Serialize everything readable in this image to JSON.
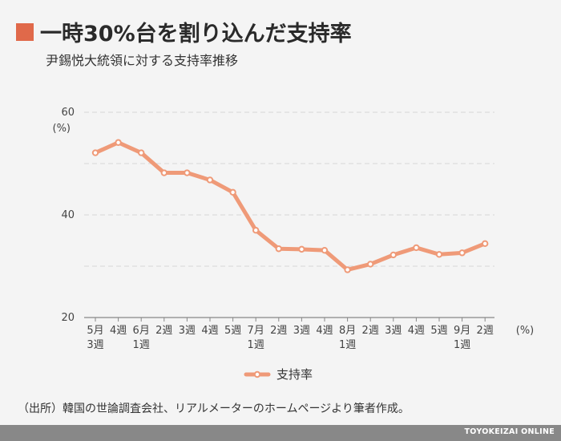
{
  "header": {
    "title": "一時30%台を割り込んだ支持率",
    "subtitle": "尹錫悦大統領に対する支持率推移"
  },
  "colors": {
    "accent": "#e0694a",
    "line": "#ef9a78",
    "grid": "#d6d6d6",
    "background": "#f4f4f4"
  },
  "chart_data": {
    "type": "line",
    "ylim": [
      20,
      60
    ],
    "yticks": [
      "20",
      "40",
      "60"
    ],
    "yunit": "(%)",
    "xunit": "(%)",
    "grid": true,
    "legend_position": "bottom",
    "categories": [
      [
        "5月",
        "3週"
      ],
      [
        "4週"
      ],
      [
        "6月",
        "1週"
      ],
      [
        "2週"
      ],
      [
        "3週"
      ],
      [
        "4週"
      ],
      [
        "5週"
      ],
      [
        "7月",
        "1週"
      ],
      [
        "2週"
      ],
      [
        "3週"
      ],
      [
        "4週"
      ],
      [
        "8月",
        "1週"
      ],
      [
        "2週"
      ],
      [
        "3週"
      ],
      [
        "4週"
      ],
      [
        "5週"
      ],
      [
        "9月",
        "1週"
      ],
      [
        "2週"
      ]
    ],
    "series": [
      {
        "name": "支持率",
        "values": [
          52.1,
          54.1,
          52.1,
          48.2,
          48.2,
          46.8,
          44.4,
          37.0,
          33.4,
          33.3,
          33.1,
          29.3,
          30.4,
          32.2,
          33.6,
          32.3,
          32.6,
          34.4
        ]
      }
    ]
  },
  "footer": {
    "source": "（出所）韓国の世論調査会社、リアルメーターのホームページより筆者作成。",
    "brand": "TOYOKEIZAI ONLINE"
  }
}
